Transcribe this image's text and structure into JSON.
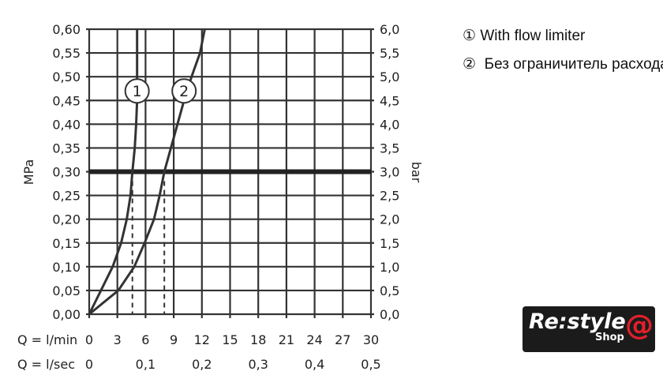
{
  "chart_data": {
    "type": "line",
    "title": "",
    "xlabel": "Q = l/min",
    "xlabel2": "Q = l/sec",
    "ylabel": "MPa",
    "ylabel_right": "bar",
    "xlim": [
      0,
      30
    ],
    "ylim": [
      0,
      0.6
    ],
    "grid": true,
    "x_ticks": [
      "0",
      "3",
      "6",
      "9",
      "12",
      "15",
      "18",
      "21",
      "24",
      "27",
      "30"
    ],
    "x2_ticks": [
      {
        "x": 0,
        "label": "0"
      },
      {
        "x": 6,
        "label": "0,1"
      },
      {
        "x": 12,
        "label": "0,2"
      },
      {
        "x": 18,
        "label": "0,3"
      },
      {
        "x": 24,
        "label": "0,4"
      },
      {
        "x": 30,
        "label": "0,5"
      }
    ],
    "y_ticks": [
      "0,00",
      "0,05",
      "0,10",
      "0,15",
      "0,20",
      "0,25",
      "0,30",
      "0,35",
      "0,40",
      "0,45",
      "0,50",
      "0,55",
      "0,60"
    ],
    "y_right_ticks": [
      "0,0",
      "0,5",
      "1,0",
      "1,5",
      "2,0",
      "2,5",
      "3,0",
      "3,5",
      "4,0",
      "4,5",
      "5,0",
      "5,5",
      "6,0"
    ],
    "reference_line_y": 0.3,
    "series": [
      {
        "name": "1",
        "x": [
          0,
          2.5,
          3.4,
          4.0,
          4.4,
          4.6,
          4.85,
          5.0,
          5.1,
          5.1,
          5.1
        ],
        "y": [
          0,
          0.1,
          0.15,
          0.2,
          0.25,
          0.3,
          0.35,
          0.4,
          0.45,
          0.5,
          0.6
        ],
        "drop_x": 4.6
      },
      {
        "name": "2",
        "x": [
          0,
          3.1,
          4.8,
          5.9,
          6.9,
          7.5,
          8.0,
          8.7,
          9.4,
          10.1,
          10.9,
          11.8,
          12.3
        ],
        "y": [
          0,
          0.05,
          0.1,
          0.15,
          0.2,
          0.25,
          0.3,
          0.35,
          0.4,
          0.45,
          0.5,
          0.55,
          0.6
        ],
        "drop_x": 8.0
      }
    ],
    "legend": [
      {
        "marker": "①",
        "text": "With flow limiter"
      },
      {
        "marker": "②",
        "text": "Без ограничитель расхода"
      }
    ],
    "legend_position": "right"
  },
  "logo": {
    "text": "Re:style",
    "sub": "Shop",
    "accent": "#e0202b"
  }
}
